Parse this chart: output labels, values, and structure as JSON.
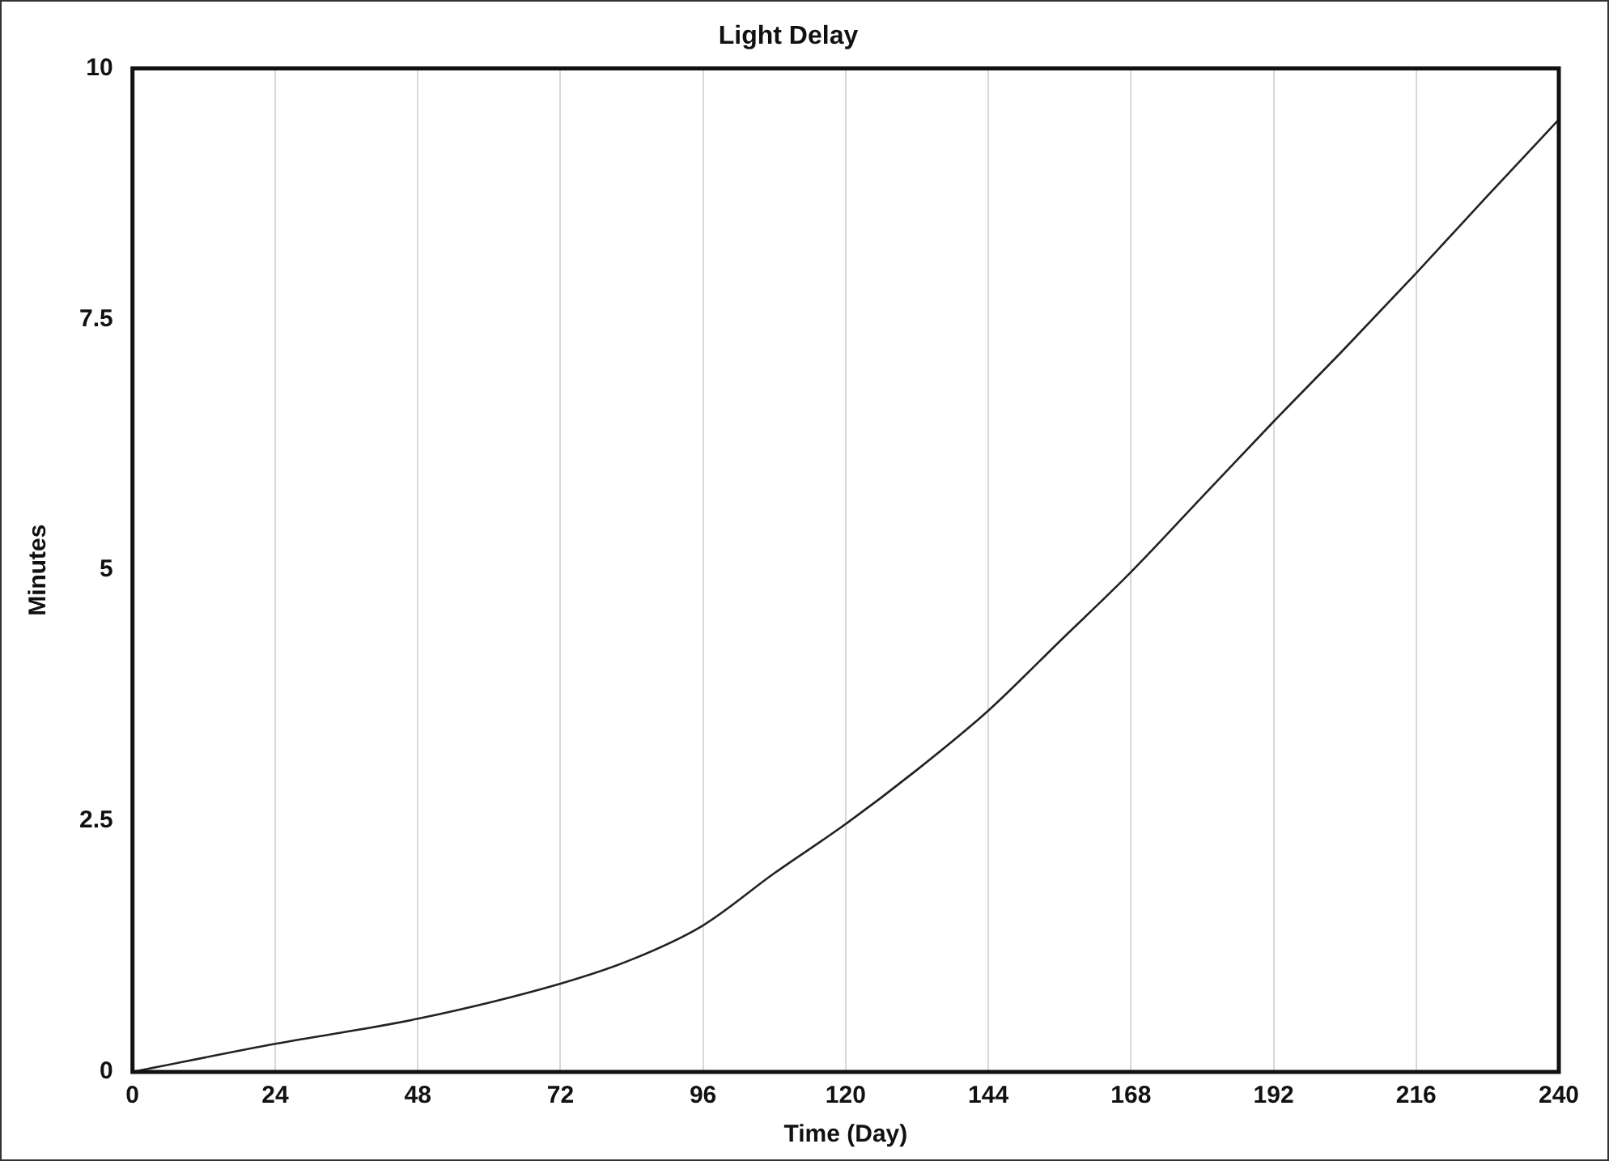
{
  "chart_data": {
    "type": "line",
    "title": "Light Delay",
    "xlabel": "Time (Day)",
    "ylabel": "Minutes",
    "x": [
      0,
      24,
      48,
      72,
      84,
      96,
      108,
      120,
      132,
      144,
      156,
      168,
      180,
      192,
      204,
      216,
      228,
      240
    ],
    "series": [
      {
        "color": "#222222",
        "values": [
          0,
          0.28,
          0.53,
          0.88,
          1.12,
          1.46,
          1.98,
          2.47,
          3.01,
          3.6,
          4.29,
          4.98,
          5.73,
          6.48,
          7.21,
          7.96,
          8.73,
          9.49
        ]
      }
    ],
    "xlim": [
      0,
      240
    ],
    "xticks": [
      0,
      24,
      48,
      72,
      96,
      120,
      144,
      168,
      192,
      216,
      240
    ],
    "ylim": [
      0,
      10
    ],
    "yticks": [
      0,
      2.5,
      5,
      7.5,
      10
    ],
    "grid": "x",
    "legend": false,
    "marker": "none",
    "line_style": "solid"
  }
}
